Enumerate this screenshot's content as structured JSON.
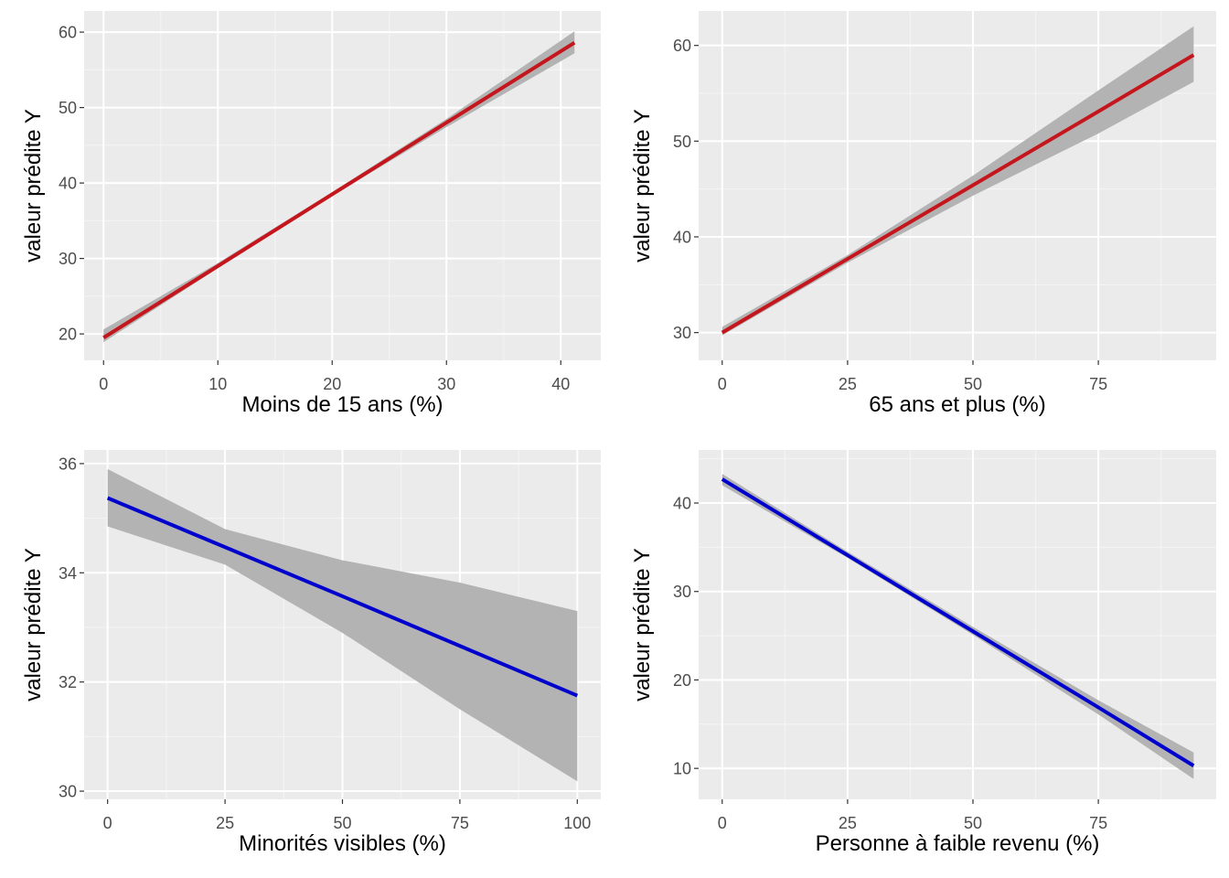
{
  "chart_data": [
    {
      "type": "line",
      "xlabel": "Moins de 15 ans (%)",
      "ylabel": "valeur prédite Y",
      "xlim": [
        -1.7,
        43.5
      ],
      "ylim": [
        16.5,
        62.8
      ],
      "xticks": [
        0,
        10,
        20,
        30,
        40
      ],
      "yticks": [
        20,
        30,
        40,
        50,
        60
      ],
      "grid": true,
      "line_color": "#c4161c",
      "ribbon_color": "#b3b3b3",
      "series": [
        {
          "x": [
            0,
            10,
            20,
            30,
            41.2
          ],
          "y": [
            19.5,
            29.0,
            38.5,
            48.0,
            58.6
          ],
          "lower": [
            18.9,
            28.7,
            38.3,
            47.4,
            57.2
          ],
          "upper": [
            20.6,
            29.4,
            38.8,
            48.5,
            60.1
          ]
        }
      ]
    },
    {
      "type": "line",
      "xlabel": "65 ans et plus (%)",
      "ylabel": "valeur prédite Y",
      "xlim": [
        -4.7,
        98.5
      ],
      "ylim": [
        27.1,
        63.6
      ],
      "xticks": [
        0,
        25,
        50,
        75
      ],
      "yticks": [
        30,
        40,
        50,
        60
      ],
      "grid": true,
      "line_color": "#c4161c",
      "ribbon_color": "#b3b3b3",
      "series": [
        {
          "x": [
            0,
            25,
            50,
            75,
            94
          ],
          "y": [
            30.0,
            37.7,
            45.4,
            53.1,
            59.0
          ],
          "lower": [
            29.7,
            37.3,
            44.3,
            50.8,
            56.2
          ],
          "upper": [
            30.6,
            38.1,
            46.4,
            55.3,
            62.0
          ]
        }
      ]
    },
    {
      "type": "line",
      "xlabel": "Minorités visibles (%)",
      "ylabel": "valeur prédite Y",
      "xlim": [
        -5,
        105
      ],
      "ylim": [
        29.85,
        36.25
      ],
      "xticks": [
        0,
        25,
        50,
        75,
        100
      ],
      "yticks": [
        30,
        32,
        34,
        36
      ],
      "grid": true,
      "line_color": "#0000cd",
      "ribbon_color": "#b3b3b3",
      "series": [
        {
          "x": [
            0,
            25,
            50,
            75,
            100
          ],
          "y": [
            35.37,
            34.47,
            33.57,
            32.66,
            31.75
          ],
          "lower": [
            34.85,
            34.15,
            32.9,
            31.5,
            30.18
          ],
          "upper": [
            35.9,
            34.8,
            34.23,
            33.82,
            33.3
          ]
        }
      ]
    },
    {
      "type": "line",
      "xlabel": "Personne à faible revenu (%)",
      "ylabel": "valeur prédite Y",
      "xlim": [
        -4.7,
        98.5
      ],
      "ylim": [
        6.5,
        46.0
      ],
      "xticks": [
        0,
        25,
        50,
        75
      ],
      "yticks": [
        10,
        20,
        30,
        40
      ],
      "grid": true,
      "line_color": "#0000cd",
      "ribbon_color": "#b3b3b3",
      "series": [
        {
          "x": [
            0,
            25,
            50,
            75,
            94
          ],
          "y": [
            42.7,
            34.1,
            25.5,
            16.9,
            10.3
          ],
          "lower": [
            42.0,
            33.8,
            25.1,
            16.1,
            8.8
          ],
          "upper": [
            43.3,
            34.5,
            26.0,
            17.7,
            11.8
          ]
        }
      ]
    }
  ]
}
